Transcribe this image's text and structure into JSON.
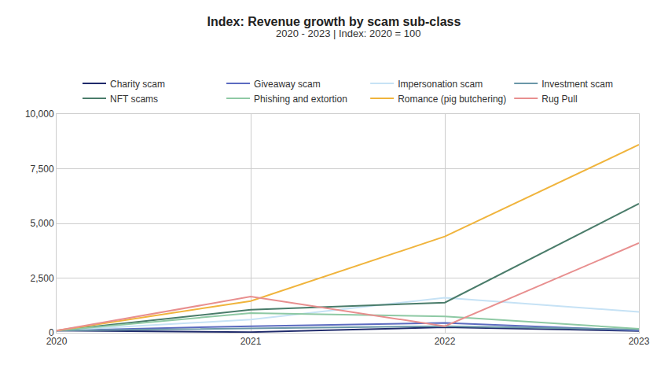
{
  "chart_data": {
    "type": "line",
    "title": "Index: Revenue growth by scam sub-class",
    "subtitle": "2020 - 2023 | Index: 2020 = 100",
    "x": [
      2020,
      2021,
      2022,
      2023
    ],
    "xlim": [
      2020,
      2023
    ],
    "xticks": [
      2020,
      2021,
      2022,
      2023
    ],
    "ylim": [
      0,
      10000
    ],
    "yticks": [
      0,
      {
        "value": 2500,
        "label": "2,500"
      },
      {
        "value": 5000,
        "label": "5,000"
      },
      {
        "value": 7500,
        "label": "7,500"
      },
      {
        "value": 10000,
        "label": "10,000"
      }
    ],
    "grid": true,
    "legend": "top",
    "series": [
      {
        "name": "Charity scam",
        "color": "#1f2a6b",
        "values": [
          100,
          30,
          250,
          80
        ]
      },
      {
        "name": "Giveaway scam",
        "color": "#5c6bc0",
        "values": [
          100,
          300,
          450,
          100
        ]
      },
      {
        "name": "Impersonation scam",
        "color": "#c6e2f5",
        "values": [
          100,
          600,
          1600,
          950
        ]
      },
      {
        "name": "Investment scam",
        "color": "#6a97a8",
        "values": [
          100,
          200,
          300,
          150
        ]
      },
      {
        "name": "NFT scams",
        "color": "#4a7c6a",
        "values": [
          100,
          1050,
          1380,
          5900
        ]
      },
      {
        "name": "Phishing and extortion",
        "color": "#8ec9a4",
        "values": [
          100,
          900,
          750,
          180
        ]
      },
      {
        "name": "Romance (pig butchering)",
        "color": "#f0b43c",
        "values": [
          100,
          1450,
          4400,
          8600
        ]
      },
      {
        "name": "Rug Pull",
        "color": "#e88f8f",
        "values": [
          100,
          1650,
          300,
          4100
        ]
      }
    ]
  }
}
